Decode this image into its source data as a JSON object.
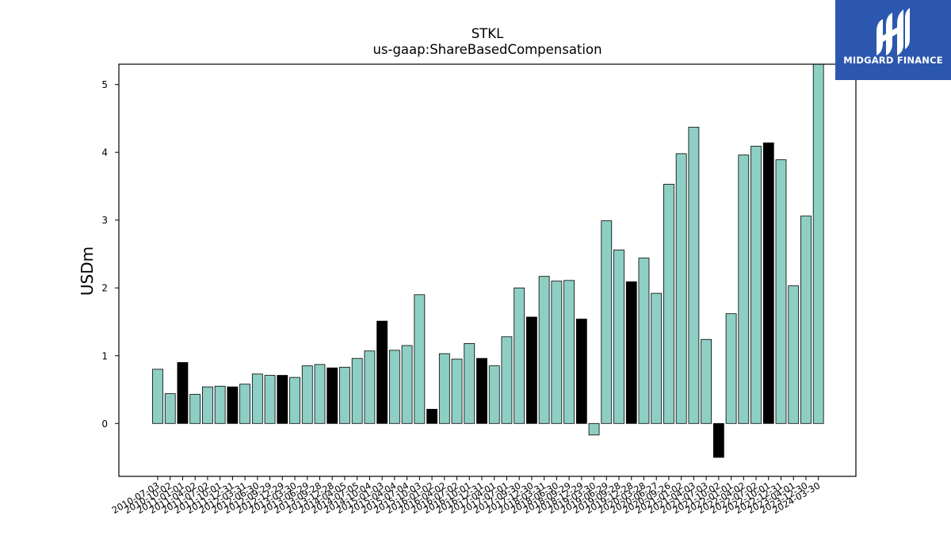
{
  "chart_data": {
    "type": "bar",
    "title": "STKL",
    "subtitle": "us-gaap:ShareBasedCompensation",
    "ylabel": "USDm",
    "xlabel": "",
    "ylim": [
      -0.78,
      5.3
    ],
    "yticks": [
      0,
      1,
      2,
      3,
      4,
      5
    ],
    "grid": false,
    "legend": "none",
    "colors": {
      "bar": "#8ecfc5",
      "highlight": "#000000",
      "edge": "#000000"
    },
    "bars": [
      {
        "date": "2010-07-03",
        "value": 0.8,
        "highlight": false
      },
      {
        "date": "2010-10-02",
        "value": 0.44,
        "highlight": false
      },
      {
        "date": "2011-01-01",
        "value": 0.9,
        "highlight": true
      },
      {
        "date": "2011-04-02",
        "value": 0.43,
        "highlight": false
      },
      {
        "date": "2011-07-02",
        "value": 0.54,
        "highlight": false
      },
      {
        "date": "2011-10-01",
        "value": 0.55,
        "highlight": false
      },
      {
        "date": "2011-12-31",
        "value": 0.54,
        "highlight": true
      },
      {
        "date": "2012-03-31",
        "value": 0.58,
        "highlight": false
      },
      {
        "date": "2012-06-30",
        "value": 0.73,
        "highlight": false
      },
      {
        "date": "2012-09-29",
        "value": 0.71,
        "highlight": false
      },
      {
        "date": "2012-12-29",
        "value": 0.71,
        "highlight": true
      },
      {
        "date": "2013-03-30",
        "value": 0.68,
        "highlight": false
      },
      {
        "date": "2013-06-29",
        "value": 0.85,
        "highlight": false
      },
      {
        "date": "2013-09-28",
        "value": 0.87,
        "highlight": false
      },
      {
        "date": "2013-12-28",
        "value": 0.82,
        "highlight": true
      },
      {
        "date": "2014-04-05",
        "value": 0.83,
        "highlight": false
      },
      {
        "date": "2014-07-05",
        "value": 0.96,
        "highlight": false
      },
      {
        "date": "2014-10-04",
        "value": 1.07,
        "highlight": false
      },
      {
        "date": "2015-01-03",
        "value": 1.51,
        "highlight": true
      },
      {
        "date": "2015-04-04",
        "value": 1.08,
        "highlight": false
      },
      {
        "date": "2015-07-04",
        "value": 1.15,
        "highlight": false
      },
      {
        "date": "2015-10-03",
        "value": 1.9,
        "highlight": false
      },
      {
        "date": "2016-01-02",
        "value": 0.21,
        "highlight": true
      },
      {
        "date": "2016-04-02",
        "value": 1.03,
        "highlight": false
      },
      {
        "date": "2016-07-02",
        "value": 0.95,
        "highlight": false
      },
      {
        "date": "2016-10-01",
        "value": 1.18,
        "highlight": false
      },
      {
        "date": "2016-12-31",
        "value": 0.96,
        "highlight": true
      },
      {
        "date": "2017-04-01",
        "value": 0.85,
        "highlight": false
      },
      {
        "date": "2017-07-01",
        "value": 1.28,
        "highlight": false
      },
      {
        "date": "2017-09-30",
        "value": 2.0,
        "highlight": false
      },
      {
        "date": "2017-12-30",
        "value": 1.57,
        "highlight": true
      },
      {
        "date": "2018-03-31",
        "value": 2.17,
        "highlight": false
      },
      {
        "date": "2018-06-30",
        "value": 2.1,
        "highlight": false
      },
      {
        "date": "2018-09-29",
        "value": 2.11,
        "highlight": false
      },
      {
        "date": "2018-12-29",
        "value": 1.54,
        "highlight": true
      },
      {
        "date": "2019-03-30",
        "value": -0.17,
        "highlight": false
      },
      {
        "date": "2019-06-29",
        "value": 2.99,
        "highlight": false
      },
      {
        "date": "2019-09-28",
        "value": 2.56,
        "highlight": false
      },
      {
        "date": "2019-12-28",
        "value": 2.09,
        "highlight": true
      },
      {
        "date": "2020-03-28",
        "value": 2.44,
        "highlight": false
      },
      {
        "date": "2020-06-27",
        "value": 1.92,
        "highlight": false
      },
      {
        "date": "2020-09-26",
        "value": 3.53,
        "highlight": false
      },
      {
        "date": "2021-01-02",
        "value": 3.98,
        "highlight": false
      },
      {
        "date": "2021-04-03",
        "value": 4.37,
        "highlight": false
      },
      {
        "date": "2021-07-03",
        "value": 1.24,
        "highlight": false
      },
      {
        "date": "2021-10-02",
        "value": -0.5,
        "highlight": true
      },
      {
        "date": "2022-01-01",
        "value": 1.62,
        "highlight": false
      },
      {
        "date": "2022-04-02",
        "value": 3.96,
        "highlight": false
      },
      {
        "date": "2022-07-02",
        "value": 4.09,
        "highlight": false
      },
      {
        "date": "2022-10-01",
        "value": 4.14,
        "highlight": true
      },
      {
        "date": "2022-12-31",
        "value": 3.89,
        "highlight": false
      },
      {
        "date": "2023-04-01",
        "value": 2.03,
        "highlight": false
      },
      {
        "date": "2023-12-30",
        "value": 3.06,
        "highlight": false
      },
      {
        "date": "2024-03-30",
        "value": 5.3,
        "highlight": false
      }
    ]
  },
  "logo": {
    "name": "midgard-finance-logo",
    "text": "MIDGARD FINANCE",
    "background": "#2c57ae"
  }
}
